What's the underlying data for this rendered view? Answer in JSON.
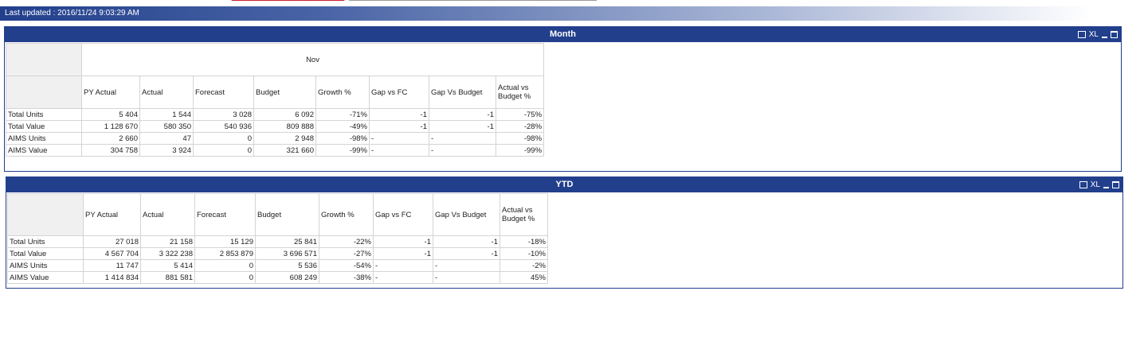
{
  "last_updated": "Last updated : 2016/11/24  9:03:29 AM",
  "panels": [
    {
      "title": "Month",
      "xl_label": "XL",
      "group_header": "Nov",
      "columns": [
        "PY Actual",
        "Actual",
        "Forecast",
        "Budget",
        "Growth %",
        "Gap  vs FC",
        "Gap Vs Budget",
        "Actual vs Budget %"
      ],
      "rows": [
        [
          "Total Units",
          "5 404",
          "1 544",
          "3 028",
          "6 092",
          "-71%",
          "-1",
          "-1",
          "-75%"
        ],
        [
          "Total Value",
          "1 128 670",
          "580 350",
          "540 936",
          "809 888",
          "-49%",
          "-1",
          "-1",
          "-28%"
        ],
        [
          "AIMS Units",
          "2 660",
          "47",
          "0",
          "2 948",
          "-98%",
          "-",
          "-",
          "-98%"
        ],
        [
          "AIMS Value",
          "304 758",
          "3 924",
          "0",
          "321 660",
          "-99%",
          "-",
          "-",
          "-99%"
        ]
      ]
    },
    {
      "title": "YTD",
      "xl_label": "XL",
      "columns": [
        "PY Actual",
        "Actual",
        "Forecast",
        "Budget",
        "Growth %",
        "Gap  vs FC",
        "Gap Vs Budget",
        "Actual vs Budget %"
      ],
      "rows": [
        [
          "Total Units",
          "27 018",
          "21 158",
          "15 129",
          "25 841",
          "-22%",
          "-1",
          "-1",
          "-18%"
        ],
        [
          "Total Value",
          "4 567 704",
          "3 322 238",
          "2 853 879",
          "3 696 571",
          "-27%",
          "-1",
          "-1",
          "-10%"
        ],
        [
          "AIMS Units",
          "11 747",
          "5 414",
          "0",
          "5 536",
          "-54%",
          "-",
          "-",
          "-2%"
        ],
        [
          "AIMS Value",
          "1 414 834",
          "881 581",
          "0",
          "608 249",
          "-38%",
          "-",
          "-",
          "45%"
        ]
      ]
    }
  ]
}
